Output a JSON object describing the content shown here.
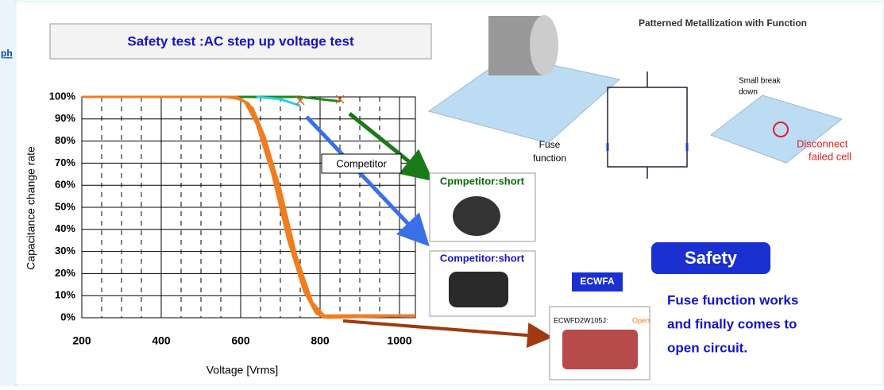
{
  "chart_data": {
    "type": "line",
    "title": "Safety test  :AC step up voltage test",
    "x_label": "Voltage [Vrms]",
    "y_label": "Capacitance change rate",
    "xlim": [
      200,
      1040
    ],
    "xticks": [
      200,
      400,
      600,
      800,
      1000
    ],
    "ylim": [
      0,
      100
    ],
    "yticks": [
      {
        "value": 0,
        "label": "0%"
      },
      {
        "value": 10,
        "label": "10%"
      },
      {
        "value": 20,
        "label": "20%"
      },
      {
        "value": 30,
        "label": "30%"
      },
      {
        "value": 40,
        "label": "40%"
      },
      {
        "value": 50,
        "label": "50%"
      },
      {
        "value": 60,
        "label": "60%"
      },
      {
        "value": 70,
        "label": "70%"
      },
      {
        "value": 80,
        "label": "80%"
      },
      {
        "value": 90,
        "label": "90%"
      },
      {
        "value": 100,
        "label": "100%"
      }
    ],
    "grid": true,
    "series": [
      {
        "color": "#1a8a1a",
        "x": [
          200,
          600,
          750,
          850
        ],
        "values": [
          100,
          100,
          100,
          98
        ]
      },
      {
        "color": "#22d3e0",
        "x": [
          640,
          700,
          750
        ],
        "values": [
          100,
          99,
          96
        ]
      },
      {
        "color": "#f07c1e",
        "x": [
          200,
          580,
          610,
          640,
          680,
          720,
          760,
          790,
          810,
          850,
          1040
        ],
        "values": [
          100,
          100,
          98,
          88,
          65,
          35,
          12,
          2,
          0,
          1,
          1
        ]
      },
      {
        "color": "#f07c1e",
        "x": [
          450,
          590,
          620,
          650,
          690,
          730,
          770,
          800,
          820,
          1040
        ],
        "values": [
          100,
          100,
          97,
          86,
          62,
          32,
          10,
          1,
          0,
          1
        ]
      },
      {
        "color": "#f07c1e",
        "x": [
          560,
          600,
          630,
          660,
          700,
          740,
          780,
          810,
          830,
          1040
        ],
        "values": [
          100,
          99,
          95,
          82,
          58,
          28,
          7,
          1,
          1,
          1
        ]
      }
    ]
  },
  "annotations": {
    "link": "ph",
    "competitor": "Competitor",
    "short_1": "Cpmpetitor:short",
    "short_2": "Competitor:short",
    "diagram_title": "Patterned Metallization with Function",
    "break_1": "Small break",
    "break_2": "down",
    "fuse_1": "Fuse",
    "fuse_2": "function",
    "disconnect_1": "Disconnect",
    "disconnect_2": "failed cell",
    "safety": "Safety",
    "ecwfa": "ECWFA",
    "part_no": "ECWFD2W105J:",
    "open": "Open",
    "summary": [
      "Fuse function works",
      "and finally comes to",
      "open circuit."
    ]
  }
}
